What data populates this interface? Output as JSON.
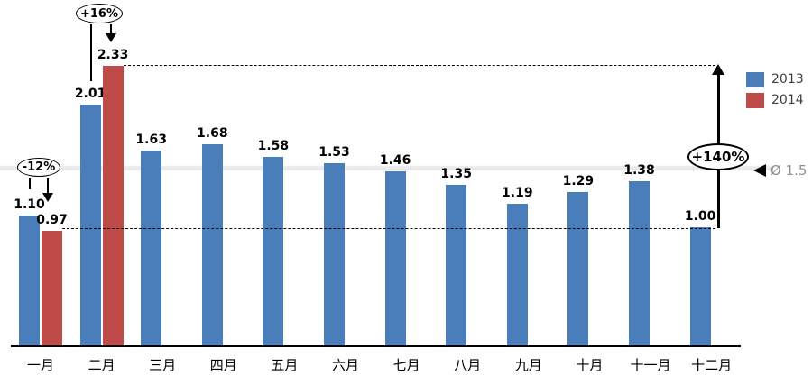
{
  "chart_data": {
    "type": "bar",
    "title": "",
    "categories": [
      "一月",
      "二月",
      "三月",
      "四月",
      "五月",
      "六月",
      "七月",
      "八月",
      "九月",
      "十月",
      "十一月",
      "十二月"
    ],
    "series": [
      {
        "name": "2013",
        "color": "#4A7EBB",
        "values": [
          1.1,
          2.01,
          1.63,
          1.68,
          1.58,
          1.53,
          1.46,
          1.35,
          1.19,
          1.29,
          1.38,
          1.0
        ]
      },
      {
        "name": "2014",
        "color": "#BE4B48",
        "values": [
          0.97,
          2.33,
          null,
          null,
          null,
          null,
          null,
          null,
          null,
          null,
          null,
          null
        ]
      }
    ],
    "value_label_format": "0.00",
    "ylim": [
      0,
      2.5
    ],
    "grid": false,
    "legend_position": "right",
    "annotations": [
      {
        "id": "jan-change",
        "label": "-12%",
        "type": "change-ellipse",
        "from": "2013 一月",
        "to": "2014 一月"
      },
      {
        "id": "feb-change",
        "label": "+16%",
        "type": "change-ellipse",
        "from": "2013 二月",
        "to": "2014 二月"
      },
      {
        "id": "dec-to-feb-growth",
        "label": "+140%",
        "type": "growth-arrow",
        "from_value": 0.97,
        "to_value": 2.33
      },
      {
        "id": "average-marker",
        "label": "Ø 1.5",
        "type": "average",
        "value": 1.5
      }
    ],
    "reference_lines": [
      {
        "id": "top-dashed",
        "at_value": 2.33,
        "style": "dashed"
      },
      {
        "id": "bottom-dashed",
        "at_value": 1.0,
        "style": "dashed"
      }
    ]
  }
}
